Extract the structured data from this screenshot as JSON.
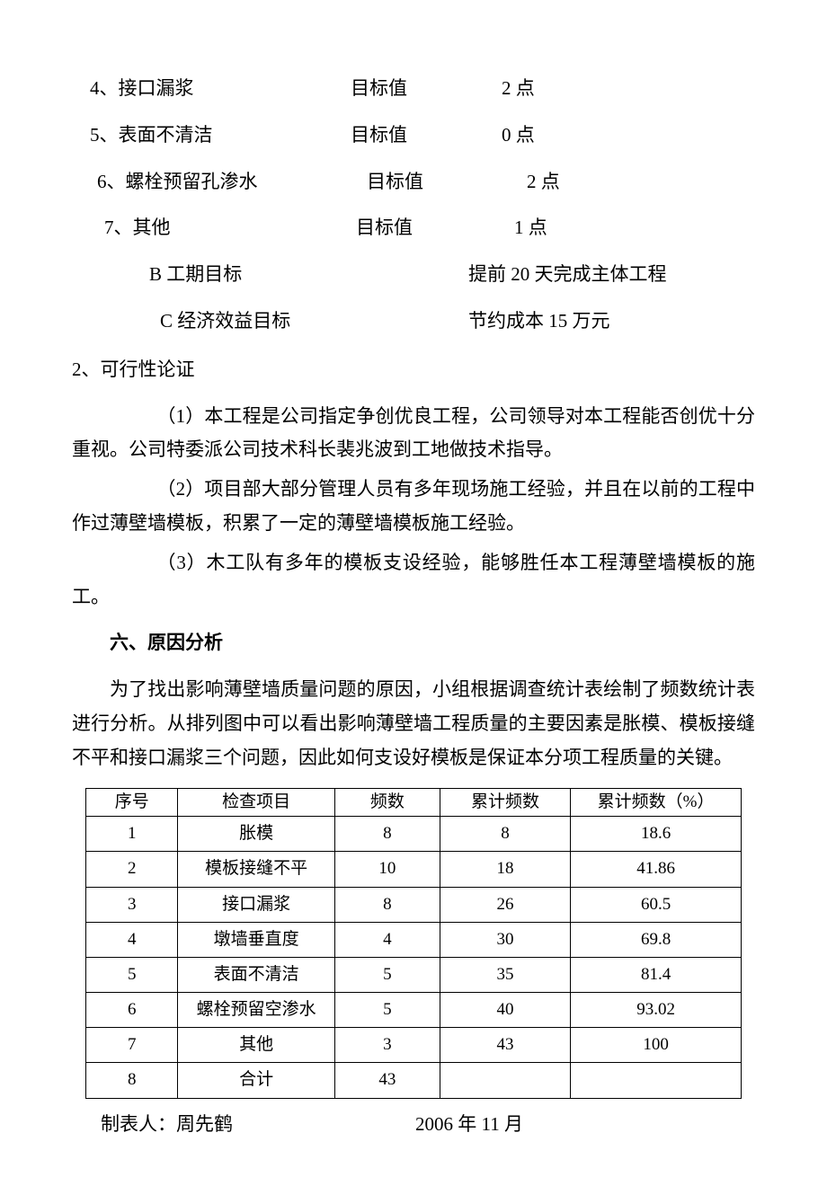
{
  "list_items": [
    {
      "label": "4、接口漏浆",
      "mid": "目标值",
      "val": "2 点"
    },
    {
      "label": "5、表面不清洁",
      "mid": "目标值",
      "val": "0 点"
    },
    {
      "label": "6、螺栓预留孔渗水",
      "mid": "目标值",
      "val": "2 点"
    },
    {
      "label": "7、其他",
      "mid": "目标值",
      "val": "1 点"
    }
  ],
  "lettered_items": [
    {
      "label": "B 工期目标",
      "val": "提前 20 天完成主体工程"
    },
    {
      "label": "C 经济效益目标",
      "val": "节约成本 15 万元"
    }
  ],
  "feasibility": {
    "heading": "2、可行性论证",
    "p1": "（1）本工程是公司指定争创优良工程，公司领导对本工程能否创优十分重视。公司特委派公司技术科长裴兆波到工地做技术指导。",
    "p2": "（2）项目部大部分管理人员有多年现场施工经验，并且在以前的工程中作过薄壁墙模板，积累了一定的薄壁墙模板施工经验。",
    "p3": "（3）木工队有多年的模板支设经验，能够胜任本工程薄壁墙模板的施工。"
  },
  "section6": {
    "heading": "六、原因分析",
    "para": "为了找出影响薄壁墙质量问题的原因，小组根据调查统计表绘制了频数统计表进行分析。从排列图中可以看出影响薄壁墙工程质量的主要因素是胀模、模板接缝不平和接口漏浆三个问题，因此如何支设好模板是保证本分项工程质量的关键。"
  },
  "table": {
    "columns": [
      "序号",
      "检查项目",
      "频数",
      "累计频数",
      "累计频数（%）"
    ],
    "rows": [
      [
        "1",
        "胀模",
        "8",
        "8",
        "18.6"
      ],
      [
        "2",
        "模板接缝不平",
        "10",
        "18",
        "41.86"
      ],
      [
        "3",
        "接口漏浆",
        "8",
        "26",
        "60.5"
      ],
      [
        "4",
        "墩墙垂直度",
        "4",
        "30",
        "69.8"
      ],
      [
        "5",
        "表面不清洁",
        "5",
        "35",
        "81.4"
      ],
      [
        "6",
        "螺栓预留空渗水",
        "5",
        "40",
        "93.02"
      ],
      [
        "7",
        "其他",
        "3",
        "43",
        "100"
      ],
      [
        "8",
        "合计",
        "43",
        "",
        ""
      ]
    ],
    "header_font_size": 19,
    "cell_font_size": 19,
    "border_color": "#000000",
    "col_widths": [
      "14%",
      "24%",
      "16%",
      "20%",
      "26%"
    ]
  },
  "footer": {
    "left": "制表人：周先鹤",
    "right": "2006 年 11 月"
  },
  "styles": {
    "background_color": "#ffffff",
    "text_color": "#000000",
    "body_font_size": 21,
    "table_font_size": 19,
    "font_family": "SimSun"
  }
}
